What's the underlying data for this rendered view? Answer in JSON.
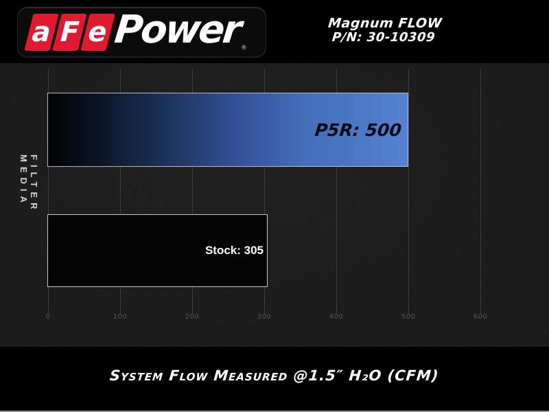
{
  "header": {
    "logo": {
      "letters": [
        "a",
        "F",
        "e"
      ],
      "power": "Power",
      "registered": "®",
      "brand_red": "#e11b2f"
    },
    "product": {
      "line1": "Magnum FLOW",
      "line2": "P/N: 30-10309"
    }
  },
  "chart": {
    "ylabel": "FILTER MEDIA",
    "caption": "System Flow Measured @1.5″ H₂O (CFM)",
    "bars": [
      {
        "name": "P5R",
        "label": "P5R: 500",
        "value": 500
      },
      {
        "name": "Stock",
        "label": "Stock: 305",
        "value": 305
      }
    ]
  },
  "chart_data": {
    "type": "bar",
    "orientation": "horizontal",
    "categories": [
      "P5R",
      "Stock"
    ],
    "values": [
      500,
      305
    ],
    "bar_labels": [
      "P5R: 500",
      "Stock: 305"
    ],
    "title": "",
    "xlabel": "System Flow Measured @1.5″ H₂O (CFM)",
    "ylabel": "FILTER MEDIA",
    "xlim": [
      0,
      600
    ],
    "x_ticks": [
      0,
      100,
      200,
      300,
      400,
      500,
      600
    ],
    "grid": true,
    "legend": false,
    "colors": {
      "p5r_bar": "gradient #000000 → #5583d4",
      "stock_bar": "#040404",
      "plot_background": "#1c1c1c",
      "gridline": "#3e3e3e",
      "tick_label": "#575757",
      "brand_red": "#e11b2f"
    }
  }
}
